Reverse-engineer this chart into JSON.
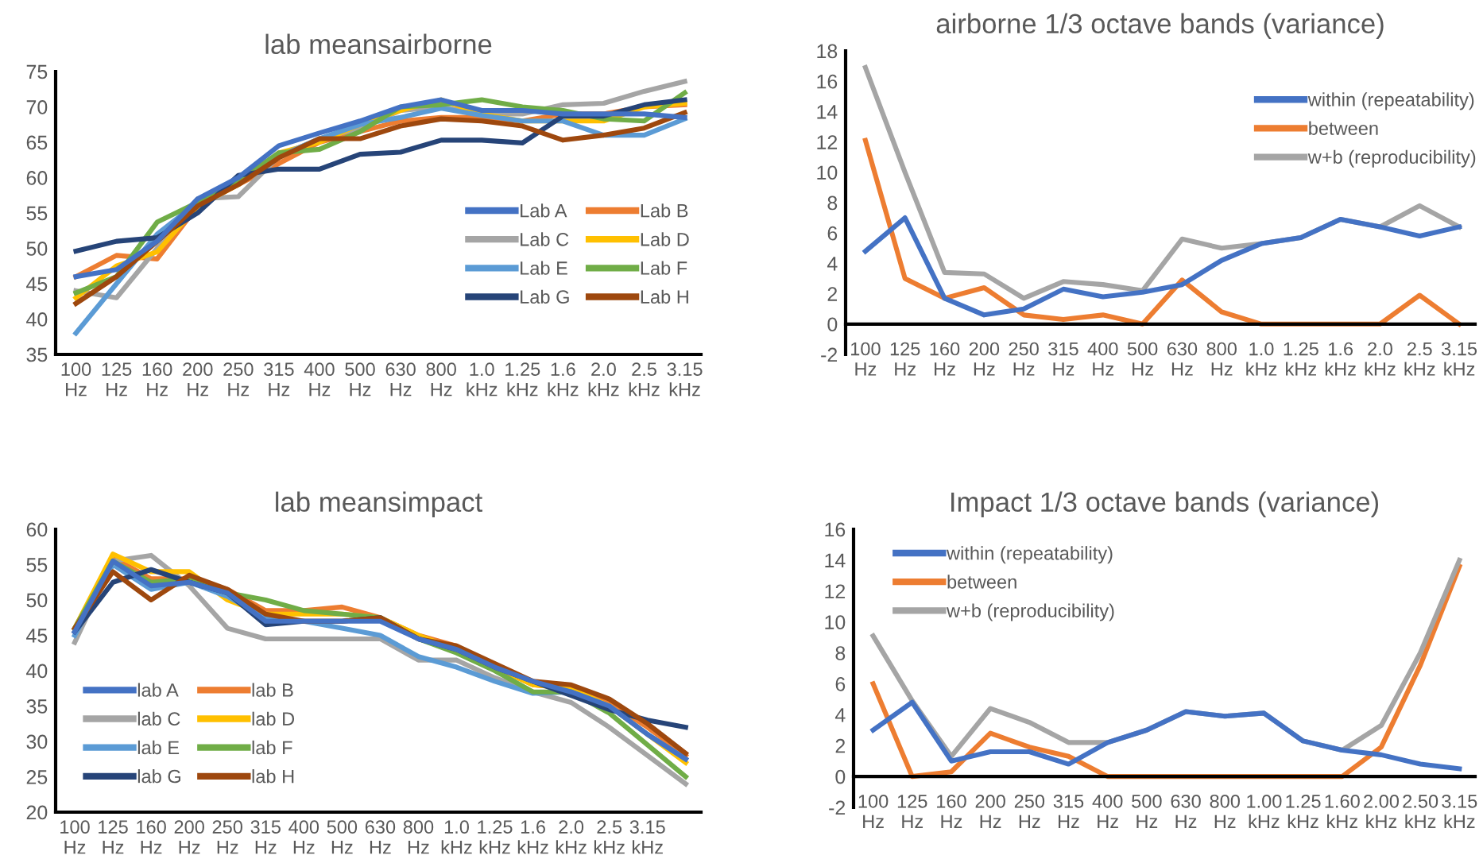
{
  "chart_data": [
    {
      "type": "line",
      "title": "lab meansairborne",
      "categories": [
        "100\nHz",
        "125\nHz",
        "160\nHz",
        "200\nHz",
        "250\nHz",
        "315\nHz",
        "400\nHz",
        "500\nHz",
        "630\nHz",
        "800\nHz",
        "1.0\nkHz",
        "1.25\nkHz",
        "1.6\nkHz",
        "2.0\nkHz",
        "2.5\nkHz",
        "3.15\nkHz"
      ],
      "ylim": [
        35,
        75
      ],
      "yticks": [
        35,
        40,
        45,
        50,
        55,
        60,
        65,
        70,
        75
      ],
      "grid": false,
      "legend": "right",
      "marker": "none",
      "line_style": "solid",
      "series": [
        {
          "name": "Lab A",
          "color": "#4472c4",
          "values": [
            46,
            47,
            51,
            57,
            60,
            64.5,
            66.3,
            68,
            70,
            71,
            69.5,
            69.5,
            69,
            69,
            69,
            68.5
          ]
        },
        {
          "name": "Lab B",
          "color": "#ed7d31",
          "values": [
            46,
            49,
            48.5,
            56,
            59,
            62,
            65,
            66.5,
            68,
            68.5,
            68.5,
            68,
            69,
            69,
            70,
            70.3
          ]
        },
        {
          "name": "Lab C",
          "color": "#a5a5a5",
          "values": [
            44,
            43,
            50,
            57,
            57.3,
            63,
            65.5,
            67,
            69.5,
            70,
            69,
            69,
            70.3,
            70.5,
            72.2,
            73.6
          ]
        },
        {
          "name": "Lab D",
          "color": "#ffc000",
          "values": [
            43,
            47.5,
            49.5,
            56,
            59,
            63.5,
            65,
            67.5,
            69.5,
            71,
            69,
            68,
            68,
            68,
            70,
            70.5
          ]
        },
        {
          "name": "Lab E",
          "color": "#5b9bd5",
          "values": [
            38,
            45,
            52,
            56.5,
            60,
            63,
            65.5,
            67.5,
            68.5,
            69.8,
            68.8,
            68,
            68,
            66,
            66,
            68.3
          ]
        },
        {
          "name": "Lab F",
          "color": "#70ad47",
          "values": [
            43.7,
            46,
            53.7,
            56.5,
            59.5,
            63.5,
            64,
            66.5,
            70,
            70.3,
            71,
            70,
            69.5,
            68.3,
            68,
            72
          ]
        },
        {
          "name": "Lab G",
          "color": "#264478",
          "values": [
            49.6,
            51,
            51.5,
            55,
            60.3,
            61.2,
            61.2,
            63.3,
            63.6,
            65.3,
            65.3,
            64.9,
            68.7,
            68.7,
            70.3,
            71
          ]
        },
        {
          "name": "Lab H",
          "color": "#9e480e",
          "values": [
            42.2,
            46,
            51,
            56,
            59,
            62.8,
            65.5,
            65.5,
            67.3,
            68.3,
            68,
            67.3,
            65.3,
            66,
            67,
            69.2
          ]
        }
      ]
    },
    {
      "type": "line",
      "title": "airborne 1/3 octave bands (variance)",
      "categories": [
        "100\nHz",
        "125\nHz",
        "160\nHz",
        "200\nHz",
        "250\nHz",
        "315\nHz",
        "400\nHz",
        "500\nHz",
        "630\nHz",
        "800\nHz",
        "1.0\nkHz",
        "1.25\nkHz",
        "1.6\nkHz",
        "2.0\nkHz",
        "2.5\nkHz",
        "3.15\nkHz"
      ],
      "ylim": [
        -2,
        18
      ],
      "yticks": [
        -2,
        0,
        2,
        4,
        6,
        8,
        10,
        12,
        14,
        16,
        18
      ],
      "grid": false,
      "legend": "top right",
      "marker": "none",
      "line_style": "solid",
      "series": [
        {
          "name": "within (repeatability)",
          "color": "#4472c4",
          "values": [
            4.8,
            7.0,
            1.7,
            0.6,
            1.0,
            2.3,
            1.8,
            2.1,
            2.6,
            4.2,
            5.3,
            5.7,
            6.9,
            6.4,
            5.8,
            6.4
          ]
        },
        {
          "name": "between",
          "color": "#ed7d31",
          "values": [
            12.1,
            3.0,
            1.7,
            2.4,
            0.6,
            0.3,
            0.6,
            0,
            2.9,
            0.8,
            0,
            0,
            0,
            0,
            1.9,
            0
          ]
        },
        {
          "name": "w+b (reproducibility)",
          "color": "#a5a5a5",
          "values": [
            16.9,
            10.0,
            3.4,
            3.3,
            1.7,
            2.8,
            2.6,
            2.2,
            5.6,
            5.0,
            5.3,
            5.7,
            6.9,
            6.4,
            7.8,
            6.4
          ]
        }
      ]
    },
    {
      "type": "line",
      "title": "lab meansimpact",
      "categories": [
        "100\nHz",
        "125\nHz",
        "160\nHz",
        "200\nHz",
        "250\nHz",
        "315\nHz",
        "400\nHz",
        "500\nHz",
        "630\nHz",
        "800\nHz",
        "1.0\nkHz",
        "1.25\nkHz",
        "1.6\nkHz",
        "2.0\nkHz",
        "2.5\nkHz",
        "3.15\nkHz",
        null
      ],
      "ylim": [
        20,
        60
      ],
      "yticks": [
        20,
        25,
        30,
        35,
        40,
        45,
        50,
        55,
        60
      ],
      "grid": false,
      "legend": "bottom left",
      "marker": "none",
      "line_style": "solid",
      "series": [
        {
          "name": "lab A",
          "color": "#4472c4",
          "values": [
            45.5,
            55.5,
            52,
            52.5,
            51,
            47,
            47,
            47,
            47,
            44.5,
            43,
            40.5,
            38.5,
            37,
            35,
            31,
            27.5
          ]
        },
        {
          "name": "lab B",
          "color": "#ed7d31",
          "values": [
            46,
            56,
            53,
            53,
            51.5,
            48.5,
            48.5,
            49,
            47.5,
            45,
            43.5,
            40.5,
            38,
            37.5,
            35.5,
            32,
            28
          ]
        },
        {
          "name": "lab C",
          "color": "#a5a5a5",
          "values": [
            44,
            55.5,
            56.3,
            52,
            46,
            44.5,
            44.5,
            44.5,
            44.5,
            41.5,
            41.5,
            39,
            37,
            35.5,
            32,
            28,
            24
          ]
        },
        {
          "name": "lab D",
          "color": "#ffc000",
          "values": [
            46,
            56.5,
            54,
            54,
            50,
            48,
            48,
            48,
            47.5,
            45,
            43,
            40.5,
            38,
            37.5,
            35,
            31,
            27
          ]
        },
        {
          "name": "lab E",
          "color": "#5b9bd5",
          "values": [
            45,
            55,
            51.5,
            52.5,
            50.5,
            47.5,
            47,
            46,
            45,
            42,
            40.5,
            38.5,
            36.8,
            37,
            35,
            31,
            27.5
          ]
        },
        {
          "name": "lab F",
          "color": "#70ad47",
          "values": [
            46,
            55.5,
            52.5,
            53,
            51,
            50,
            48.5,
            48,
            47.5,
            44.5,
            42.5,
            40,
            37,
            37,
            34,
            29.5,
            25
          ]
        },
        {
          "name": "lab G",
          "color": "#264478",
          "values": [
            45.5,
            52.5,
            54.3,
            52.5,
            51,
            46.5,
            47,
            47,
            47.5,
            44.5,
            43,
            40.5,
            38.5,
            36.5,
            34.5,
            33,
            32
          ]
        },
        {
          "name": "lab H",
          "color": "#9e480e",
          "values": [
            46,
            54,
            50,
            53.5,
            51.5,
            48,
            47,
            47,
            47.5,
            44.5,
            43.5,
            41,
            38.5,
            38,
            36,
            32.5,
            28.3
          ]
        }
      ]
    },
    {
      "type": "line",
      "title": "Impact 1/3 octave bands (variance)",
      "categories": [
        "100\nHz",
        "125\nHz",
        "160\nHz",
        "200\nHz",
        "250\nHz",
        "315\nHz",
        "400\nHz",
        "500\nHz",
        "630\nHz",
        "800\nHz",
        "1.00\nkHz",
        "1.25\nkHz",
        "1.60\nkHz",
        "2.00\nkHz",
        "2.50\nkHz",
        "3.15\nkHz"
      ],
      "ylim": [
        -2,
        16
      ],
      "yticks": [
        -2,
        0,
        2,
        4,
        6,
        8,
        10,
        12,
        14,
        16
      ],
      "grid": false,
      "legend": "top left",
      "marker": "none",
      "line_style": "solid",
      "series": [
        {
          "name": "within (repeatability)",
          "color": "#4472c4",
          "values": [
            3.0,
            4.8,
            1.0,
            1.6,
            1.6,
            0.8,
            2.2,
            3.0,
            4.2,
            3.9,
            4.1,
            2.3,
            1.7,
            1.4,
            0.8,
            0.5
          ]
        },
        {
          "name": "between",
          "color": "#ed7d31",
          "values": [
            6.0,
            0,
            0.3,
            2.8,
            1.9,
            1.3,
            0,
            0,
            0,
            0,
            0,
            0,
            0,
            1.9,
            7.2,
            13.6
          ]
        },
        {
          "name": "w+b (reproducibility)",
          "color": "#a5a5a5",
          "values": [
            9.1,
            4.9,
            1.3,
            4.4,
            3.5,
            2.2,
            2.2,
            3.0,
            4.2,
            3.9,
            4.1,
            2.3,
            1.7,
            3.3,
            8.0,
            14.0
          ]
        }
      ]
    }
  ]
}
